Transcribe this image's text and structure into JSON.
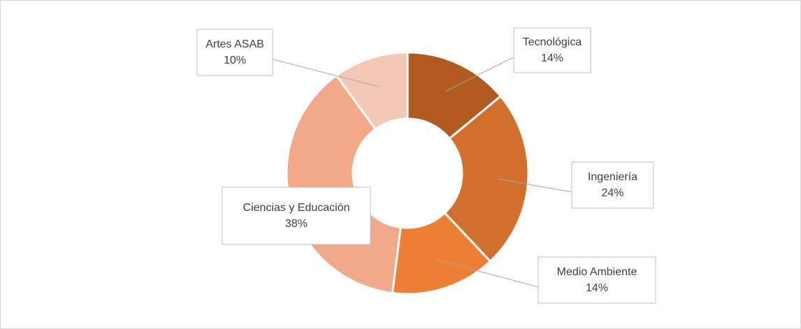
{
  "chart_data": {
    "type": "donut",
    "categories": [
      "Tecnológica",
      "Ingeniería",
      "Medio Ambiente",
      "Ciencias y Educación",
      "Artes ASAB"
    ],
    "values": [
      14,
      24,
      14,
      38,
      10
    ],
    "value_labels": [
      "14%",
      "24%",
      "14%",
      "38%",
      "10%"
    ],
    "colors": [
      "#b25b20",
      "#d26f2c",
      "#ee8035",
      "#f1a98a",
      "#f4c7b7"
    ]
  }
}
